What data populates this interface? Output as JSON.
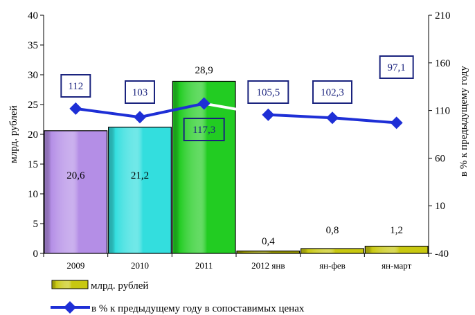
{
  "chart_data": {
    "type": "bar",
    "categories": [
      "2009",
      "2010",
      "2011",
      "2012 янв",
      "ян-фев",
      "ян-март"
    ],
    "series": [
      {
        "name": "млрд. рублей",
        "type": "bar",
        "axis": "left",
        "values": [
          20.6,
          21.2,
          28.9,
          0.4,
          0.8,
          1.2
        ],
        "labels": [
          "20,6",
          "21,2",
          "28,9",
          "0,4",
          "0,8",
          "1,2"
        ],
        "colors": [
          "#b48ee6",
          "#33dede",
          "#22cc22",
          "#9a9a00",
          "#c8c810",
          "#c8c810"
        ]
      },
      {
        "name": "в % к предыдущему году в сопоставимых ценах",
        "type": "line",
        "axis": "right",
        "values": [
          112,
          103,
          117.3,
          105.5,
          102.3,
          97.1
        ],
        "labels": [
          "112",
          "103",
          "117,3",
          "105,5",
          "102,3",
          "97,1"
        ],
        "color": "#1e2fd6"
      }
    ],
    "y_left": {
      "label": "млрд. рублей",
      "min": 0,
      "max": 40,
      "ticks": [
        0,
        5,
        10,
        15,
        20,
        25,
        30,
        35,
        40
      ]
    },
    "y_right": {
      "label": "в % к предыдущему году",
      "min": -40,
      "max": 210,
      "ticks": [
        -40,
        10,
        60,
        110,
        160,
        210
      ]
    },
    "grid": false,
    "legend": "bottom-left"
  }
}
